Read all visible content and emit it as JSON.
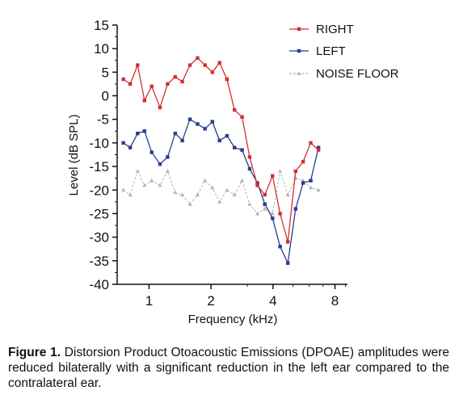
{
  "chart_data": {
    "type": "line",
    "xlabel": "Frequency (kHz)",
    "ylabel": "Level (dB SPL)",
    "x_scale": "log",
    "xlim": [
      0.7,
      9.2
    ],
    "ylim": [
      -40,
      15
    ],
    "xticks": [
      1,
      2,
      4,
      8
    ],
    "xtick_labels": [
      "1",
      "2",
      "4",
      "8"
    ],
    "yticks": [
      15,
      10,
      5,
      0,
      -5,
      -10,
      -15,
      -20,
      -25,
      -30,
      -35,
      -40
    ],
    "ytick_labels": [
      "15",
      "10",
      "5",
      "0",
      "-5",
      "-10",
      "-15",
      "-20",
      "-25",
      "-30",
      "-35",
      "-40"
    ],
    "grid": false,
    "legend_position": "top-right",
    "series": [
      {
        "name": "RIGHT",
        "color": "#d32f2f",
        "marker": "square",
        "dash": "solid",
        "points": [
          [
            0.75,
            3.5
          ],
          [
            0.81,
            2.5
          ],
          [
            0.88,
            6.5
          ],
          [
            0.95,
            -1
          ],
          [
            1.03,
            2
          ],
          [
            1.13,
            -2.5
          ],
          [
            1.23,
            2.5
          ],
          [
            1.34,
            4
          ],
          [
            1.45,
            3
          ],
          [
            1.58,
            6.5
          ],
          [
            1.72,
            8
          ],
          [
            1.87,
            6.5
          ],
          [
            2.03,
            5
          ],
          [
            2.2,
            7
          ],
          [
            2.39,
            3.5
          ],
          [
            2.6,
            -3
          ],
          [
            2.83,
            -4.5
          ],
          [
            3.08,
            -13
          ],
          [
            3.36,
            -19
          ],
          [
            3.65,
            -21
          ],
          [
            3.98,
            -17
          ],
          [
            4.33,
            -25
          ],
          [
            4.72,
            -31
          ],
          [
            5.15,
            -16
          ],
          [
            5.6,
            -14
          ],
          [
            6.1,
            -10
          ],
          [
            6.65,
            -11.5
          ]
        ]
      },
      {
        "name": "LEFT",
        "color": "#2a3d8f",
        "marker": "square",
        "dash": "solid",
        "points": [
          [
            0.75,
            -10
          ],
          [
            0.81,
            -11
          ],
          [
            0.88,
            -8
          ],
          [
            0.95,
            -7.5
          ],
          [
            1.03,
            -12
          ],
          [
            1.13,
            -14.5
          ],
          [
            1.23,
            -13
          ],
          [
            1.34,
            -8
          ],
          [
            1.45,
            -9.5
          ],
          [
            1.58,
            -5
          ],
          [
            1.72,
            -6
          ],
          [
            1.87,
            -7
          ],
          [
            2.03,
            -5.5
          ],
          [
            2.2,
            -9.5
          ],
          [
            2.39,
            -8.5
          ],
          [
            2.6,
            -11
          ],
          [
            2.83,
            -11.5
          ],
          [
            3.08,
            -15.5
          ],
          [
            3.36,
            -18.5
          ],
          [
            3.65,
            -23
          ],
          [
            3.98,
            -26
          ],
          [
            4.33,
            -32
          ],
          [
            4.72,
            -35.5
          ],
          [
            5.15,
            -24
          ],
          [
            5.6,
            -18.5
          ],
          [
            6.1,
            -18
          ],
          [
            6.65,
            -11
          ]
        ]
      },
      {
        "name": "NOISE FLOOR",
        "color": "#b5b5b5",
        "marker": "triangle",
        "dash": "dashed",
        "points": [
          [
            0.75,
            -20
          ],
          [
            0.81,
            -21
          ],
          [
            0.88,
            -16
          ],
          [
            0.95,
            -19
          ],
          [
            1.03,
            -18
          ],
          [
            1.13,
            -19
          ],
          [
            1.23,
            -16
          ],
          [
            1.34,
            -20.5
          ],
          [
            1.45,
            -21
          ],
          [
            1.58,
            -23
          ],
          [
            1.72,
            -21
          ],
          [
            1.87,
            -18
          ],
          [
            2.03,
            -19.5
          ],
          [
            2.2,
            -22.5
          ],
          [
            2.39,
            -20
          ],
          [
            2.6,
            -21
          ],
          [
            2.83,
            -18
          ],
          [
            3.08,
            -23
          ],
          [
            3.36,
            -25
          ],
          [
            3.65,
            -24
          ],
          [
            3.98,
            -25
          ],
          [
            4.33,
            -16
          ],
          [
            4.72,
            -21
          ],
          [
            5.15,
            -17.5
          ],
          [
            5.6,
            -18
          ],
          [
            6.1,
            -19.5
          ],
          [
            6.65,
            -20
          ]
        ]
      }
    ]
  },
  "caption": {
    "label": "Figure 1.",
    "text": "Distorsion Product Otoacoustic Emissions (DPOAE) amplitudes were reduced bilaterally with a significant reduction in the left ear compared to the contralateral ear."
  }
}
